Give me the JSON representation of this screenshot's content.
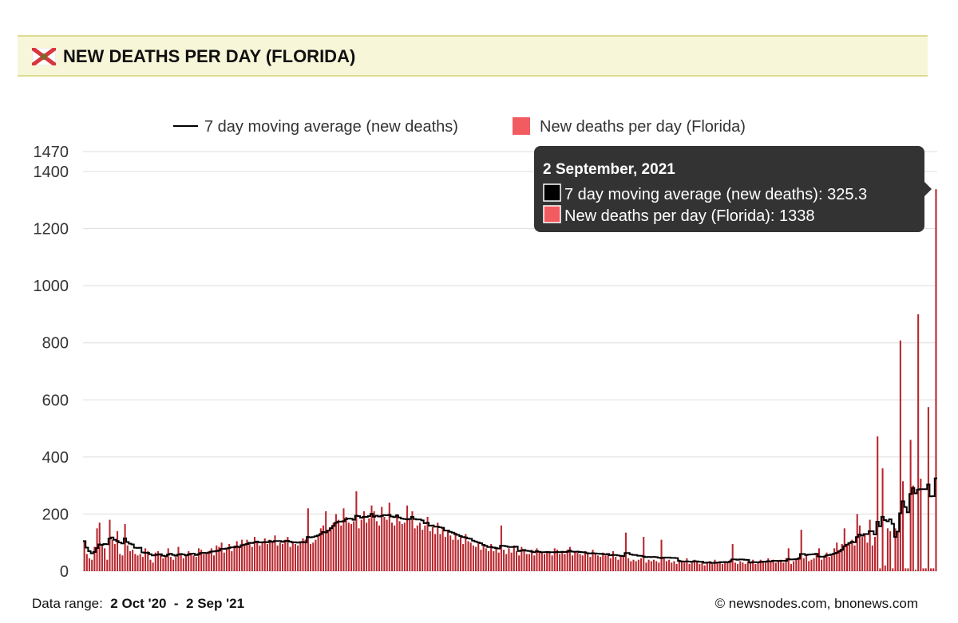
{
  "header": {
    "title": "NEW DEATHS PER DAY (FLORIDA)",
    "flag_icon": "florida-flag-icon"
  },
  "footer": {
    "range_label": "Data range:",
    "range_value": "2 Oct '20  -  2 Sep '21",
    "credit": "© newsnodes.com, bnonews.com"
  },
  "tooltip": {
    "date": "2 September, 2021",
    "ma_label": "7 day moving average (new deaths): 325.3",
    "bar_label": "New deaths per day (Florida): 1338"
  },
  "colors": {
    "bar": "#b8262d",
    "legend_bar": "#f25c61",
    "line": "#000000",
    "tooltip_bg": "#333333"
  },
  "chart_data": {
    "type": "bar",
    "title": "NEW DEATHS PER DAY (FLORIDA)",
    "x_start": "2 Oct 2020",
    "x_end": "2 Sep 2021",
    "ylim": [
      0,
      1470
    ],
    "yticks": [
      "0",
      "200",
      "400",
      "600",
      "800",
      "1000",
      "1200",
      "1400",
      "1470"
    ],
    "ytick_values": [
      0,
      200,
      400,
      600,
      800,
      1000,
      1200,
      1400,
      1470
    ],
    "legend": [
      "7 day moving average (new deaths)",
      "New deaths per day (Florida)"
    ],
    "legend_position": "top-center",
    "grid": true,
    "series": [
      {
        "name": "New deaths per day (Florida)",
        "type": "bar",
        "values": [
          105,
          60,
          45,
          40,
          85,
          150,
          170,
          95,
          80,
          40,
          180,
          110,
          95,
          140,
          60,
          55,
          165,
          90,
          70,
          75,
          60,
          55,
          60,
          50,
          80,
          70,
          40,
          30,
          65,
          70,
          60,
          45,
          55,
          80,
          50,
          40,
          50,
          85,
          60,
          45,
          55,
          70,
          60,
          55,
          50,
          80,
          75,
          60,
          65,
          70,
          80,
          55,
          90,
          85,
          100,
          65,
          80,
          95,
          70,
          90,
          105,
          85,
          110,
          95,
          110,
          100,
          85,
          120,
          105,
          90,
          100,
          115,
          95,
          110,
          105,
          125,
          90,
          100,
          95,
          110,
          120,
          85,
          105,
          95,
          90,
          105,
          115,
          110,
          220,
          95,
          100,
          110,
          125,
          150,
          160,
          210,
          140,
          155,
          170,
          200,
          180,
          160,
          220,
          190,
          170,
          165,
          175,
          280,
          150,
          180,
          210,
          170,
          185,
          230,
          210,
          175,
          160,
          225,
          190,
          180,
          240,
          170,
          160,
          200,
          175,
          165,
          170,
          230,
          180,
          210,
          150,
          160,
          170,
          145,
          160,
          190,
          140,
          155,
          130,
          170,
          130,
          150,
          120,
          140,
          125,
          110,
          135,
          110,
          120,
          95,
          130,
          105,
          100,
          90,
          85,
          100,
          75,
          90,
          80,
          70,
          95,
          70,
          85,
          65,
          160,
          75,
          60,
          80,
          65,
          90,
          70,
          55,
          85,
          75,
          60,
          60,
          75,
          55,
          80,
          70,
          65,
          60,
          65,
          70,
          55,
          80,
          75,
          60,
          70,
          60,
          75,
          85,
          55,
          70,
          65,
          60,
          55,
          70,
          65,
          50,
          75,
          60,
          55,
          50,
          65,
          55,
          60,
          45,
          70,
          50,
          40,
          55,
          50,
          135,
          45,
          35,
          40,
          35,
          40,
          45,
          120,
          30,
          40,
          35,
          40,
          35,
          30,
          110,
          45,
          35,
          40,
          30,
          35,
          25,
          40,
          35,
          30,
          45,
          25,
          30,
          40,
          35,
          25,
          30,
          20,
          30,
          35,
          25,
          40,
          30,
          35,
          25,
          35,
          30,
          40,
          95,
          30,
          25,
          35,
          30,
          25,
          35,
          30,
          40,
          25,
          30,
          40,
          35,
          30,
          45,
          35,
          40,
          30,
          35,
          40,
          30,
          45,
          80,
          25,
          35,
          40,
          50,
          145,
          45,
          55,
          35,
          40,
          45,
          60,
          80,
          40,
          55,
          65,
          50,
          60,
          80,
          100,
          75,
          95,
          150,
          90,
          100,
          110,
          90,
          200,
          160,
          120,
          130,
          100,
          180,
          90,
          120,
          472,
          10,
          360,
          20,
          150,
          140,
          10,
          150,
          140,
          808,
          315,
          10,
          10,
          460,
          300,
          5,
          900,
          324,
          10,
          10,
          575,
          10,
          10,
          1338
        ]
      },
      {
        "name": "7 day moving average (new deaths)",
        "type": "line",
        "last_value": 325.3
      }
    ]
  }
}
